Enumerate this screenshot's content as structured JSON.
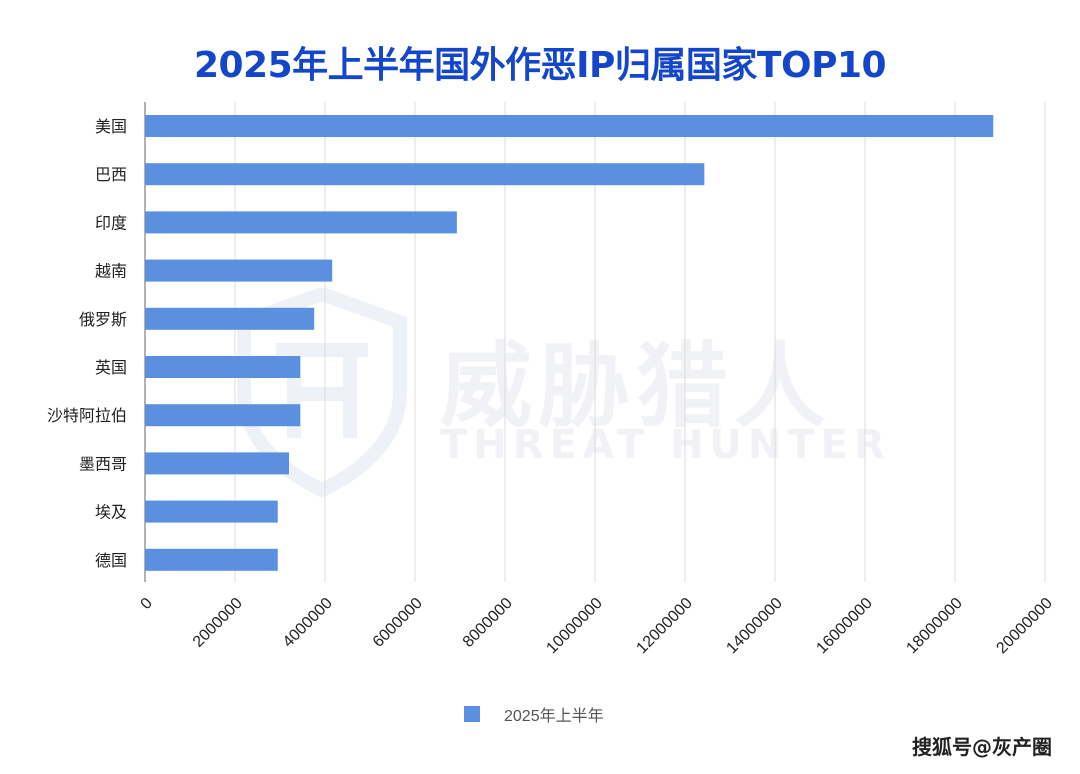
{
  "title": "2025年上半年国外作恶IP归属国家TOP10",
  "watermark": {
    "cn": "威胁猎人",
    "en": "THREAT HUNTER"
  },
  "footer": "搜狐号@灰产圈",
  "colors": {
    "bar": "#5b8fdf",
    "title": "#1346c9",
    "grid": "#dcdcdc"
  },
  "chart_data": {
    "type": "bar",
    "orientation": "horizontal",
    "categories": [
      "美国",
      "巴西",
      "印度",
      "越南",
      "俄罗斯",
      "英国",
      "沙特阿拉伯",
      "墨西哥",
      "埃及",
      "德国"
    ],
    "series": [
      {
        "name": "2025年上半年",
        "values": [
          18850000,
          12430000,
          6930000,
          4160000,
          3760000,
          3450000,
          3450000,
          3200000,
          2950000,
          2950000
        ]
      }
    ],
    "xlim": [
      0,
      20000000
    ],
    "xticks": [
      0,
      2000000,
      4000000,
      6000000,
      8000000,
      10000000,
      12000000,
      14000000,
      16000000,
      18000000,
      20000000
    ],
    "xtick_labels": [
      "0",
      "2000000",
      "4000000",
      "6000000",
      "8000000",
      "10000000",
      "12000000",
      "14000000",
      "16000000",
      "18000000",
      "20000000"
    ],
    "grid": true,
    "legend": "bottom"
  }
}
